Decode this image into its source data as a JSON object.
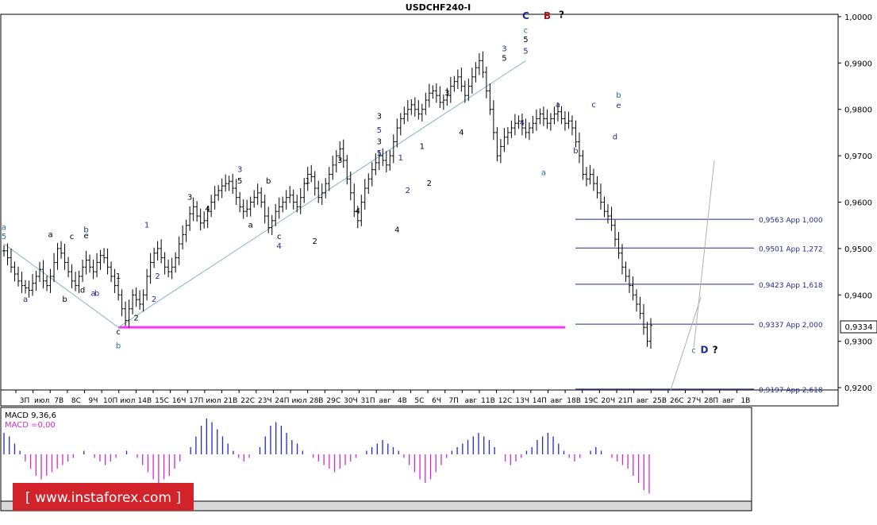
{
  "chart_data": {
    "type": "candlestick",
    "title": "USDCHF240-I",
    "current_price": "0,9334",
    "y_axis": {
      "range": [
        0.9195,
        1.0005
      ],
      "ticks": [
        "1,0000",
        "0,9900",
        "0,9800",
        "0,9700",
        "0,9600",
        "0,9500",
        "0,9400",
        "0,9300",
        "0,9200"
      ]
    },
    "x_axis": {
      "ticks": [
        "3П",
        "июл",
        "7В",
        "8С",
        "9Ч",
        "10П",
        "июл",
        "14В",
        "15С",
        "16Ч",
        "17П",
        "июл",
        "21В",
        "22С",
        "23Ч",
        "24П",
        "июл",
        "28В",
        "29С",
        "30Ч",
        "31П",
        "авг",
        "4В",
        "5С",
        "6Ч",
        "7П",
        "авг",
        "11В",
        "12С",
        "13Ч",
        "14П",
        "авг",
        "18В",
        "19С",
        "20Ч",
        "21П",
        "авг",
        "25В",
        "26С",
        "27Ч",
        "28П",
        "авг",
        "1В"
      ]
    },
    "price_series": [
      0.9495,
      0.948,
      0.946,
      0.9445,
      0.943,
      0.942,
      0.9415,
      0.941,
      0.9425,
      0.944,
      0.9455,
      0.943,
      0.942,
      0.944,
      0.947,
      0.95,
      0.949,
      0.947,
      0.945,
      0.943,
      0.942,
      0.944,
      0.946,
      0.9475,
      0.946,
      0.945,
      0.947,
      0.9485,
      0.948,
      0.946,
      0.944,
      0.942,
      0.94,
      0.937,
      0.9345,
      0.937,
      0.94,
      0.939,
      0.938,
      0.94,
      0.944,
      0.947,
      0.949,
      0.95,
      0.948,
      0.946,
      0.945,
      0.946,
      0.948,
      0.951,
      0.953,
      0.955,
      0.9575,
      0.959,
      0.957,
      0.9555,
      0.956,
      0.958,
      0.96,
      0.9615,
      0.9625,
      0.9635,
      0.964,
      0.9645,
      0.963,
      0.961,
      0.959,
      0.958,
      0.9585,
      0.96,
      0.961,
      0.962,
      0.96,
      0.957,
      0.9545,
      0.956,
      0.958,
      0.959,
      0.96,
      0.961,
      0.9615,
      0.96,
      0.959,
      0.961,
      0.964,
      0.966,
      0.9655,
      0.963,
      0.961,
      0.962,
      0.964,
      0.966,
      0.968,
      0.97,
      0.9715,
      0.969,
      0.965,
      0.962,
      0.958,
      0.956,
      0.96,
      0.963,
      0.965,
      0.967,
      0.9685,
      0.97,
      0.969,
      0.968,
      0.97,
      0.973,
      0.976,
      0.978,
      0.979,
      0.98,
      0.981,
      0.98,
      0.979,
      0.98,
      0.982,
      0.9835,
      0.984,
      0.983,
      0.9815,
      0.982,
      0.983,
      0.985,
      0.986,
      0.987,
      0.985,
      0.983,
      0.985,
      0.987,
      0.989,
      0.9905,
      0.988,
      0.984,
      0.98,
      0.975,
      0.97,
      0.972,
      0.974,
      0.975,
      0.976,
      0.977,
      0.9775,
      0.976,
      0.975,
      0.976,
      0.977,
      0.978,
      0.979,
      0.978,
      0.977,
      0.978,
      0.979,
      0.9795,
      0.978,
      0.977,
      0.9775,
      0.976,
      0.973,
      0.97,
      0.966,
      0.965,
      0.966,
      0.964,
      0.962,
      0.96,
      0.958,
      0.957,
      0.955,
      0.952,
      0.949,
      0.946,
      0.944,
      0.942,
      0.94,
      0.938,
      0.936,
      0.933,
      0.93,
      0.9334
    ],
    "wave_labels": [
      {
        "text": "a",
        "i": 0,
        "p": 0.954,
        "c": "#1e6fb0"
      },
      {
        "text": "5",
        "i": 0,
        "p": 0.952,
        "c": "#1e6fb0"
      },
      {
        "text": "a",
        "i": 6,
        "p": 0.9385,
        "c": "#1f2c8f"
      },
      {
        "text": "a",
        "i": 13,
        "p": 0.9525,
        "c": "#000000"
      },
      {
        "text": "b",
        "i": 17,
        "p": 0.9385,
        "c": "#000000"
      },
      {
        "text": "c",
        "i": 19,
        "p": 0.952,
        "c": "#000000"
      },
      {
        "text": "d",
        "i": 22,
        "p": 0.9405,
        "c": "#000000"
      },
      {
        "text": "b",
        "i": 23,
        "p": 0.9535,
        "c": "#1f2c8f"
      },
      {
        "text": "e",
        "i": 23,
        "p": 0.9522,
        "c": "#000000"
      },
      {
        "text": "a",
        "i": 25,
        "p": 0.9398,
        "c": "#1f2c8f"
      },
      {
        "text": "b",
        "i": 26,
        "p": 0.9398,
        "c": "#1f2c8f"
      },
      {
        "text": "1",
        "i": 32,
        "p": 0.9435,
        "c": "#000000"
      },
      {
        "text": "c",
        "i": 32,
        "p": 0.9315,
        "c": "#000000"
      },
      {
        "text": "b",
        "i": 32,
        "p": 0.9285,
        "c": "#1e6fb0"
      },
      {
        "text": "2",
        "i": 37,
        "p": 0.9345,
        "c": "#000000"
      },
      {
        "text": "1",
        "i": 40,
        "p": 0.9545,
        "c": "#1f2c8f"
      },
      {
        "text": "2",
        "i": 43,
        "p": 0.9435,
        "c": "#1f2c8f"
      },
      {
        "text": "2",
        "i": 42,
        "p": 0.9385,
        "c": "#1f2c8f"
      },
      {
        "text": "3",
        "i": 52,
        "p": 0.9605,
        "c": "#000000"
      },
      {
        "text": "4",
        "i": 57,
        "p": 0.958,
        "c": "#000000"
      },
      {
        "text": "5",
        "i": 66,
        "p": 0.964,
        "c": "#000000"
      },
      {
        "text": "3",
        "i": 66,
        "p": 0.9665,
        "c": "#1f2c8f"
      },
      {
        "text": "b",
        "i": 74,
        "p": 0.964,
        "c": "#000000"
      },
      {
        "text": "a",
        "i": 69,
        "p": 0.9545,
        "c": "#000000"
      },
      {
        "text": "c",
        "i": 77,
        "p": 0.952,
        "c": "#000000"
      },
      {
        "text": "4",
        "i": 77,
        "p": 0.95,
        "c": "#1f2c8f"
      },
      {
        "text": "1",
        "i": 85,
        "p": 0.964,
        "c": "#000000"
      },
      {
        "text": "2",
        "i": 87,
        "p": 0.951,
        "c": "#000000"
      },
      {
        "text": "3",
        "i": 94,
        "p": 0.9685,
        "c": "#000000"
      },
      {
        "text": "4",
        "i": 99,
        "p": 0.9575,
        "c": "#000000"
      },
      {
        "text": "3",
        "i": 105,
        "p": 0.978,
        "c": "#000000"
      },
      {
        "text": "5",
        "i": 105,
        "p": 0.975,
        "c": "#1f2c8f"
      },
      {
        "text": "3",
        "i": 105,
        "p": 0.9725,
        "c": "#000000"
      },
      {
        "text": "5",
        "i": 105,
        "p": 0.97,
        "c": "#1f2c8f"
      },
      {
        "text": "1",
        "i": 111,
        "p": 0.969,
        "c": "#1f2c8f"
      },
      {
        "text": "2",
        "i": 113,
        "p": 0.962,
        "c": "#1f2c8f"
      },
      {
        "text": "1",
        "i": 117,
        "p": 0.9715,
        "c": "#000000"
      },
      {
        "text": "2",
        "i": 119,
        "p": 0.9635,
        "c": "#000000"
      },
      {
        "text": "4",
        "i": 110,
        "p": 0.9535,
        "c": "#000000"
      },
      {
        "text": "3",
        "i": 124,
        "p": 0.983,
        "c": "#000000"
      },
      {
        "text": "4",
        "i": 128,
        "p": 0.9745,
        "c": "#000000"
      },
      {
        "text": "3",
        "i": 140,
        "p": 0.9925,
        "c": "#1f2c8f"
      },
      {
        "text": "5",
        "i": 140,
        "p": 0.9905,
        "c": "#000000"
      },
      {
        "text": "5",
        "i": 146,
        "p": 0.9945,
        "c": "#000000"
      },
      {
        "text": "c",
        "i": 146,
        "p": 0.9965,
        "c": "#1e6fb0"
      },
      {
        "text": "5",
        "i": 146,
        "p": 0.992,
        "c": "#1f2c8f"
      },
      {
        "text": "4",
        "i": 145,
        "p": 0.9765,
        "c": "#1f2c8f"
      },
      {
        "text": "C",
        "i": 146,
        "p": 0.9995,
        "c": "#1f2c8f"
      },
      {
        "text": "B",
        "i": 152,
        "p": 0.9995,
        "c": "#a01818"
      },
      {
        "text": "?",
        "i": 156,
        "p": 0.9997,
        "c": "#000000"
      },
      {
        "text": "a",
        "i": 151,
        "p": 0.9658,
        "c": "#1e6fb0"
      },
      {
        "text": "a",
        "i": 155,
        "p": 0.9805,
        "c": "#1f2c8f"
      },
      {
        "text": "b",
        "i": 160,
        "p": 0.9705,
        "c": "#1f2c8f"
      },
      {
        "text": "c",
        "i": 165,
        "p": 0.9805,
        "c": "#1f2c8f"
      },
      {
        "text": "b",
        "i": 172,
        "p": 0.9825,
        "c": "#1e6fb0"
      },
      {
        "text": "e",
        "i": 172,
        "p": 0.9803,
        "c": "#1f2c8f"
      },
      {
        "text": "d",
        "i": 171,
        "p": 0.9735,
        "c": "#1f2c8f"
      },
      {
        "text": "c",
        "i": 193,
        "p": 0.9275,
        "c": "#1e6fb0"
      },
      {
        "text": "D",
        "i": 196,
        "p": 0.9275,
        "c": "#1f2c8f"
      },
      {
        "text": "?",
        "i": 199,
        "p": 0.9275,
        "c": "#000000"
      }
    ],
    "fib_levels": [
      {
        "price": 0.9563,
        "label": "0,9563 App 1,000"
      },
      {
        "price": 0.9501,
        "label": "0,9501 App 1,272"
      },
      {
        "price": 0.9423,
        "label": "0,9423 App 1,618"
      },
      {
        "price": 0.9337,
        "label": "0,9337 App 2,000"
      },
      {
        "price": 0.9197,
        "label": "0,9197 App 2,618"
      }
    ],
    "support_line": {
      "price": 0.933,
      "color": "#ff33ff"
    },
    "macd": {
      "label1": "MACD 9,36,6",
      "label2": "MACD =0,00",
      "values": [
        0.6,
        0.5,
        0.3,
        0.1,
        -0.2,
        -0.4,
        -0.6,
        -0.7,
        -0.6,
        -0.5,
        -0.4,
        -0.3,
        -0.2,
        -0.1,
        0.0,
        0.1,
        0.0,
        -0.1,
        -0.2,
        -0.3,
        -0.2,
        -0.1,
        0.0,
        0.1,
        0.0,
        -0.1,
        -0.3,
        -0.5,
        -0.7,
        -0.8,
        -0.7,
        -0.6,
        -0.4,
        -0.2,
        0.0,
        0.2,
        0.5,
        0.8,
        1.0,
        0.9,
        0.7,
        0.5,
        0.3,
        0.1,
        -0.1,
        -0.2,
        -0.1,
        0.0,
        0.2,
        0.5,
        0.8,
        0.9,
        0.8,
        0.6,
        0.4,
        0.3,
        0.1,
        0.0,
        -0.1,
        -0.2,
        -0.3,
        -0.4,
        -0.5,
        -0.4,
        -0.3,
        -0.2,
        -0.1,
        0.0,
        0.1,
        0.2,
        0.3,
        0.4,
        0.3,
        0.2,
        0.1,
        -0.1,
        -0.3,
        -0.5,
        -0.7,
        -0.8,
        -0.7,
        -0.5,
        -0.3,
        -0.1,
        0.1,
        0.2,
        0.3,
        0.4,
        0.5,
        0.6,
        0.5,
        0.4,
        0.2,
        0.0,
        -0.2,
        -0.3,
        -0.2,
        -0.1,
        0.1,
        0.2,
        0.4,
        0.5,
        0.6,
        0.5,
        0.3,
        0.1,
        -0.1,
        -0.2,
        -0.1,
        0.0,
        0.1,
        0.2,
        0.1,
        0.0,
        -0.1,
        -0.2,
        -0.3,
        -0.4,
        -0.6,
        -0.8,
        -1.0,
        -1.1
      ],
      "pos_color": "#1f2ad0",
      "neg_color": "#d02bd0"
    }
  },
  "watermark": "[ www.instaforex.com ]"
}
